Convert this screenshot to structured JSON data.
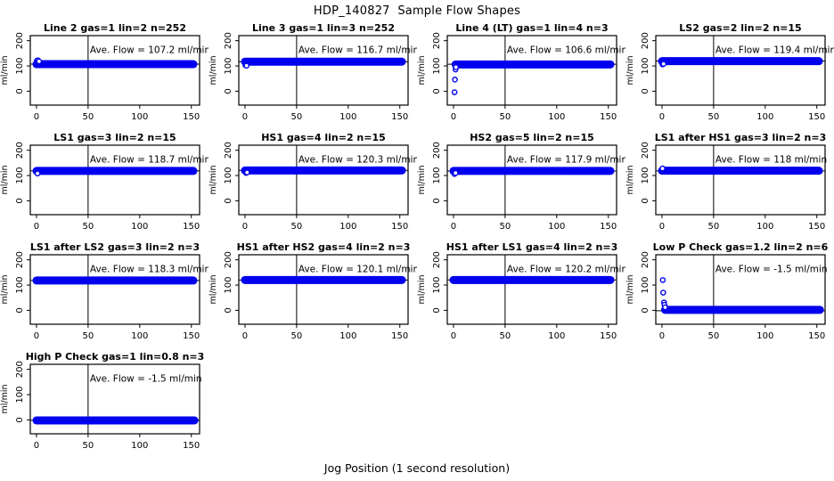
{
  "title": "HDP_140827  Sample Flow Shapes",
  "xlabel": "Jog Position (1 second resolution)",
  "colors": {
    "points": "#0000ee",
    "axis": "#000000",
    "background": "#ffffff"
  },
  "chart_data": {
    "type": "scatter",
    "layout": "small-multiples-grid-4x4",
    "ylabel": "ml/min",
    "yticks": [
      0,
      100,
      200
    ],
    "xticks": [
      0,
      50,
      100,
      150
    ],
    "xlim": [
      -6,
      158
    ],
    "ylim": [
      -55,
      220
    ],
    "vline_x": 50,
    "marker": "open-circle",
    "panels": [
      {
        "title": "Line 2 gas=1 lin=2 n=252",
        "ave_label": "Ave. Flow =  107.2  ml/min",
        "ave_flow": 107.2,
        "band": {
          "x0": 0,
          "x1": 152,
          "y": 107
        },
        "points": [
          [
            0.5,
            121
          ],
          [
            1.5,
            122
          ],
          [
            2.5,
            118
          ]
        ]
      },
      {
        "title": "Line 3 gas=1 lin=3 n=252",
        "ave_label": "Ave. Flow =  116.7  ml/min",
        "ave_flow": 116.7,
        "band": {
          "x0": 0,
          "x1": 152,
          "y": 117
        },
        "points": [
          [
            0.5,
            103
          ],
          [
            1.5,
            101
          ]
        ]
      },
      {
        "title": "Line 4 (LT) gas=1 lin=4 n=3",
        "ave_label": "Ave. Flow =  106.6  ml/min",
        "ave_flow": 106.6,
        "band": {
          "x0": 2,
          "x1": 152,
          "y": 106
        },
        "points": [
          [
            1,
            -4
          ],
          [
            1.4,
            46
          ],
          [
            2,
            86
          ],
          [
            2.4,
            95
          ]
        ]
      },
      {
        "title": "LS2 gas=2 lin=2 n=15",
        "ave_label": "Ave. Flow =  119.4  ml/min",
        "ave_flow": 119.4,
        "band": {
          "x0": 0,
          "x1": 152,
          "y": 119
        },
        "points": [
          [
            0.5,
            106
          ],
          [
            1.5,
            108
          ]
        ]
      },
      {
        "title": "LS1 gas=3 lin=2 n=15",
        "ave_label": "Ave. Flow =  118.7  ml/min",
        "ave_flow": 118.7,
        "band": {
          "x0": 0,
          "x1": 152,
          "y": 118
        },
        "points": [
          [
            1,
            108
          ]
        ]
      },
      {
        "title": "HS1 gas=4 lin=2 n=15",
        "ave_label": "Ave. Flow =  120.3  ml/min",
        "ave_flow": 120.3,
        "band": {
          "x0": 0,
          "x1": 152,
          "y": 120
        },
        "points": [
          [
            1,
            110
          ],
          [
            2,
            112
          ]
        ]
      },
      {
        "title": "HS2 gas=5 lin=2 n=15",
        "ave_label": "Ave. Flow =  117.9  ml/min",
        "ave_flow": 117.9,
        "band": {
          "x0": 0,
          "x1": 152,
          "y": 118
        },
        "points": [
          [
            1,
            106
          ],
          [
            2,
            110
          ]
        ]
      },
      {
        "title": "LS1 after HS1 gas=3 lin=2 n=3",
        "ave_label": "Ave. Flow =  118  ml/min",
        "ave_flow": 118,
        "band": {
          "x0": 0,
          "x1": 152,
          "y": 119
        },
        "points": [
          [
            0.5,
            128
          ]
        ]
      },
      {
        "title": "LS1 after LS2 gas=3 lin=2 n=3",
        "ave_label": "Ave. Flow =  118.3  ml/min",
        "ave_flow": 118.3,
        "band": {
          "x0": 0,
          "x1": 152,
          "y": 118
        },
        "points": []
      },
      {
        "title": "HS1 after HS2 gas=4 lin=2 n=3",
        "ave_label": "Ave. Flow =  120.1  ml/min",
        "ave_flow": 120.1,
        "band": {
          "x0": 0,
          "x1": 152,
          "y": 120
        },
        "points": []
      },
      {
        "title": "HS1 after LS1 gas=4 lin=2 n=3",
        "ave_label": "Ave. Flow =  120.2  ml/min",
        "ave_flow": 120.2,
        "band": {
          "x0": 0,
          "x1": 152,
          "y": 120
        },
        "points": []
      },
      {
        "title": "Low P Check gas=1.2 lin=2 n=6",
        "ave_label": "Ave. Flow =  -1.5  ml/min",
        "ave_flow": -1.5,
        "band": {
          "x0": 3,
          "x1": 153,
          "y": 2
        },
        "points": [
          [
            0.8,
            120
          ],
          [
            1.2,
            70
          ],
          [
            2,
            31
          ],
          [
            2.4,
            22
          ],
          [
            3,
            12
          ]
        ]
      },
      {
        "title": "High P Check gas=1 lin=0.8 n=3",
        "ave_label": "Ave. Flow =  -1.5  ml/min",
        "ave_flow": -1.5,
        "band": {
          "x0": 0,
          "x1": 153,
          "y": -2
        },
        "points": []
      }
    ]
  }
}
